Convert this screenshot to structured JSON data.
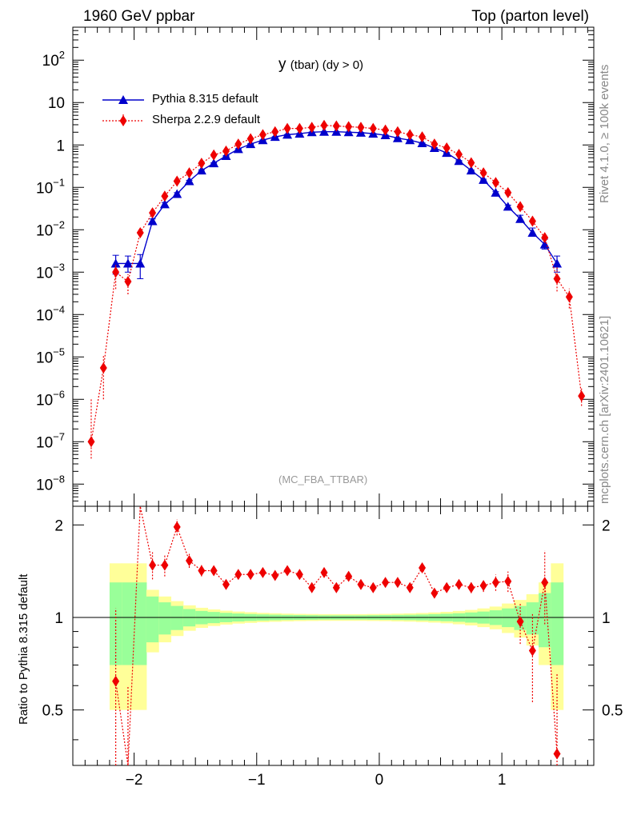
{
  "header": {
    "left": "1960 GeV ppbar",
    "right": "Top (parton level)"
  },
  "side": {
    "rivet": "Rivet 4.1.0, ≥ 100k events",
    "mcplots": "mcplots.cern.ch [arXiv:2401.10621]"
  },
  "colors": {
    "pythia": "#0000cc",
    "sherpa": "#ee0000",
    "band_inner": "#99ff99",
    "band_outer": "#ffff99"
  },
  "chart_data": {
    "type": "line",
    "title": "y",
    "title_sub": "(tbar) (dy > 0)",
    "ref_label": "(MC_FBA_TTBAR)",
    "xlabel": "",
    "xlim": [
      -2.5,
      1.75
    ],
    "x_ticks": [
      -2,
      -1,
      0,
      1
    ],
    "x_tick_labels": [
      "−2",
      "−1",
      "0",
      "1"
    ],
    "main": {
      "yscale": "log",
      "ylim": [
        3e-09,
        600
      ],
      "y_ticks": [
        {
          "v": 1e-08,
          "base": "10",
          "exp": "−8"
        },
        {
          "v": 1e-07,
          "base": "10",
          "exp": "−7"
        },
        {
          "v": 1e-06,
          "base": "10",
          "exp": "−6"
        },
        {
          "v": 1e-05,
          "base": "10",
          "exp": "−5"
        },
        {
          "v": 0.0001,
          "base": "10",
          "exp": "−4"
        },
        {
          "v": 0.001,
          "base": "10",
          "exp": "−3"
        },
        {
          "v": 0.01,
          "base": "10",
          "exp": "−2"
        },
        {
          "v": 0.1,
          "base": "10",
          "exp": "−1"
        },
        {
          "v": 1,
          "base": "1",
          "exp": ""
        },
        {
          "v": 10,
          "base": "10",
          "exp": ""
        },
        {
          "v": 100,
          "base": "10",
          "exp": "2"
        }
      ]
    },
    "series": [
      {
        "name": "Pythia 8.315 default",
        "marker": "triangle",
        "x": [
          -2.15,
          -2.05,
          -1.95,
          -1.85,
          -1.75,
          -1.65,
          -1.55,
          -1.45,
          -1.35,
          -1.25,
          -1.15,
          -1.05,
          -0.95,
          -0.85,
          -0.75,
          -0.65,
          -0.55,
          -0.45,
          -0.35,
          -0.25,
          -0.15,
          -0.05,
          0.05,
          0.15,
          0.25,
          0.35,
          0.45,
          0.55,
          0.65,
          0.75,
          0.85,
          0.95,
          1.05,
          1.15,
          1.25,
          1.35,
          1.45
        ],
        "y": [
          0.0016,
          0.0016,
          0.0016,
          0.016,
          0.04,
          0.07,
          0.14,
          0.25,
          0.37,
          0.55,
          0.8,
          1.05,
          1.3,
          1.55,
          1.75,
          1.85,
          2.0,
          2.05,
          2.05,
          2.0,
          1.95,
          1.85,
          1.7,
          1.45,
          1.3,
          1.1,
          0.85,
          0.65,
          0.42,
          0.25,
          0.15,
          0.075,
          0.035,
          0.018,
          0.0085,
          0.0045,
          0.0016
        ],
        "yerr_lo": [
          0.0007,
          0.0006,
          0.0009,
          0.002,
          0.004,
          0.005,
          0.007,
          0.01,
          0.012,
          0.015,
          0.02,
          0.02,
          0.02,
          0.02,
          0.02,
          0.02,
          0.02,
          0.02,
          0.02,
          0.02,
          0.02,
          0.02,
          0.02,
          0.02,
          0.02,
          0.02,
          0.015,
          0.012,
          0.01,
          0.008,
          0.006,
          0.004,
          0.003,
          0.002,
          0.0015,
          0.001,
          0.0006
        ],
        "yerr_hi": [
          0.0009,
          0.0008,
          0.001,
          0.002,
          0.004,
          0.005,
          0.007,
          0.01,
          0.012,
          0.015,
          0.02,
          0.02,
          0.02,
          0.02,
          0.02,
          0.02,
          0.02,
          0.02,
          0.02,
          0.02,
          0.02,
          0.02,
          0.02,
          0.02,
          0.02,
          0.02,
          0.015,
          0.012,
          0.01,
          0.008,
          0.006,
          0.004,
          0.003,
          0.004,
          0.0025,
          0.0015,
          0.0008
        ]
      },
      {
        "name": "Sherpa 2.2.9 default",
        "marker": "diamond",
        "x": [
          -2.35,
          -2.25,
          -2.15,
          -2.05,
          -1.95,
          -1.85,
          -1.75,
          -1.65,
          -1.55,
          -1.45,
          -1.35,
          -1.25,
          -1.15,
          -1.05,
          -0.95,
          -0.85,
          -0.75,
          -0.65,
          -0.55,
          -0.45,
          -0.35,
          -0.25,
          -0.15,
          -0.05,
          0.05,
          0.15,
          0.25,
          0.35,
          0.45,
          0.55,
          0.65,
          0.75,
          0.85,
          0.95,
          1.05,
          1.15,
          1.25,
          1.35,
          1.45,
          1.55,
          1.65
        ],
        "y": [
          1e-07,
          5.5e-06,
          0.001,
          0.0006,
          0.0085,
          0.025,
          0.062,
          0.14,
          0.22,
          0.37,
          0.58,
          0.72,
          1.05,
          1.4,
          1.75,
          2.05,
          2.45,
          2.45,
          2.6,
          2.9,
          2.8,
          2.7,
          2.6,
          2.45,
          2.25,
          2.05,
          1.75,
          1.55,
          1.05,
          0.85,
          0.6,
          0.38,
          0.22,
          0.13,
          0.075,
          0.035,
          0.016,
          0.0065,
          0.0007,
          0.00026,
          1.2e-06
        ],
        "yerr_lo": [
          6e-08,
          4.5e-06,
          0.0006,
          0.0003,
          0.002,
          0.003,
          0.006,
          0.01,
          0.015,
          0.02,
          0.02,
          0.03,
          0.04,
          0.05,
          0.05,
          0.05,
          0.06,
          0.06,
          0.06,
          0.06,
          0.06,
          0.06,
          0.06,
          0.06,
          0.05,
          0.05,
          0.05,
          0.04,
          0.03,
          0.03,
          0.02,
          0.015,
          0.01,
          0.008,
          0.005,
          0.003,
          0.002,
          0.0012,
          0.00035,
          0.00012,
          5e-07
        ],
        "yerr_hi": [
          9e-07,
          5e-06,
          0.0006,
          0.0003,
          0.002,
          0.003,
          0.006,
          0.01,
          0.015,
          0.02,
          0.02,
          0.03,
          0.04,
          0.05,
          0.05,
          0.05,
          0.06,
          0.06,
          0.06,
          0.06,
          0.06,
          0.06,
          0.06,
          0.06,
          0.05,
          0.05,
          0.05,
          0.04,
          0.03,
          0.03,
          0.02,
          0.015,
          0.01,
          0.008,
          0.005,
          0.003,
          0.002,
          0.0012,
          0.0007,
          0.00015,
          6e-07
        ]
      }
    ],
    "ratio": {
      "ylabel": "Ratio to Pythia 8.315 default",
      "ylim": [
        0.33,
        2.3
      ],
      "y_ticks": [
        0.5,
        1,
        2
      ],
      "y_tick_labels": [
        "0.5",
        "1",
        "2"
      ],
      "x": [
        -2.15,
        -2.05,
        -1.95,
        -1.85,
        -1.75,
        -1.65,
        -1.55,
        -1.45,
        -1.35,
        -1.25,
        -1.15,
        -1.05,
        -0.95,
        -0.85,
        -0.75,
        -0.65,
        -0.55,
        -0.45,
        -0.35,
        -0.25,
        -0.15,
        -0.05,
        0.05,
        0.15,
        0.25,
        0.35,
        0.45,
        0.55,
        0.65,
        0.75,
        0.85,
        0.95,
        1.05,
        1.15,
        1.25,
        1.35,
        1.45
      ],
      "values": [
        0.62,
        0.3,
        3.0,
        1.48,
        1.48,
        1.97,
        1.53,
        1.42,
        1.42,
        1.28,
        1.38,
        1.38,
        1.4,
        1.37,
        1.42,
        1.38,
        1.25,
        1.4,
        1.25,
        1.36,
        1.28,
        1.25,
        1.3,
        1.3,
        1.25,
        1.45,
        1.2,
        1.25,
        1.28,
        1.25,
        1.27,
        1.3,
        1.31,
        0.97,
        0.78,
        1.3,
        0.36
      ],
      "err": [
        0.45,
        0.3,
        0.8,
        0.15,
        0.12,
        0.12,
        0.08,
        0.06,
        0.05,
        0.04,
        0.04,
        0.03,
        0.03,
        0.03,
        0.03,
        0.03,
        0.03,
        0.03,
        0.03,
        0.03,
        0.03,
        0.03,
        0.03,
        0.03,
        0.03,
        0.03,
        0.03,
        0.03,
        0.04,
        0.05,
        0.06,
        0.08,
        0.1,
        0.15,
        0.25,
        0.35,
        0.3
      ],
      "band_edges": [
        -2.2,
        -2.1,
        -2.0,
        -1.9,
        -1.8,
        -1.7,
        -1.6,
        -1.5,
        -1.4,
        -1.3,
        -1.2,
        -1.1,
        -1.0,
        -0.9,
        -0.8,
        -0.7,
        -0.6,
        -0.5,
        -0.4,
        -0.3,
        -0.2,
        -0.1,
        0.0,
        0.1,
        0.2,
        0.3,
        0.4,
        0.5,
        0.6,
        0.7,
        0.8,
        0.9,
        1.0,
        1.1,
        1.2,
        1.3,
        1.4,
        1.5
      ],
      "band_inner": [
        0.3,
        0.3,
        0.3,
        0.17,
        0.12,
        0.09,
        0.065,
        0.05,
        0.042,
        0.035,
        0.03,
        0.026,
        0.023,
        0.021,
        0.019,
        0.018,
        0.017,
        0.016,
        0.016,
        0.016,
        0.016,
        0.017,
        0.018,
        0.019,
        0.02,
        0.022,
        0.025,
        0.028,
        0.032,
        0.038,
        0.045,
        0.055,
        0.07,
        0.09,
        0.12,
        0.2,
        0.3
      ],
      "band_outer": [
        0.5,
        0.5,
        0.5,
        0.23,
        0.17,
        0.13,
        0.095,
        0.075,
        0.062,
        0.052,
        0.045,
        0.04,
        0.035,
        0.032,
        0.029,
        0.027,
        0.026,
        0.025,
        0.025,
        0.025,
        0.025,
        0.026,
        0.027,
        0.029,
        0.031,
        0.034,
        0.038,
        0.043,
        0.05,
        0.058,
        0.07,
        0.085,
        0.11,
        0.14,
        0.19,
        0.3,
        0.5
      ]
    }
  }
}
